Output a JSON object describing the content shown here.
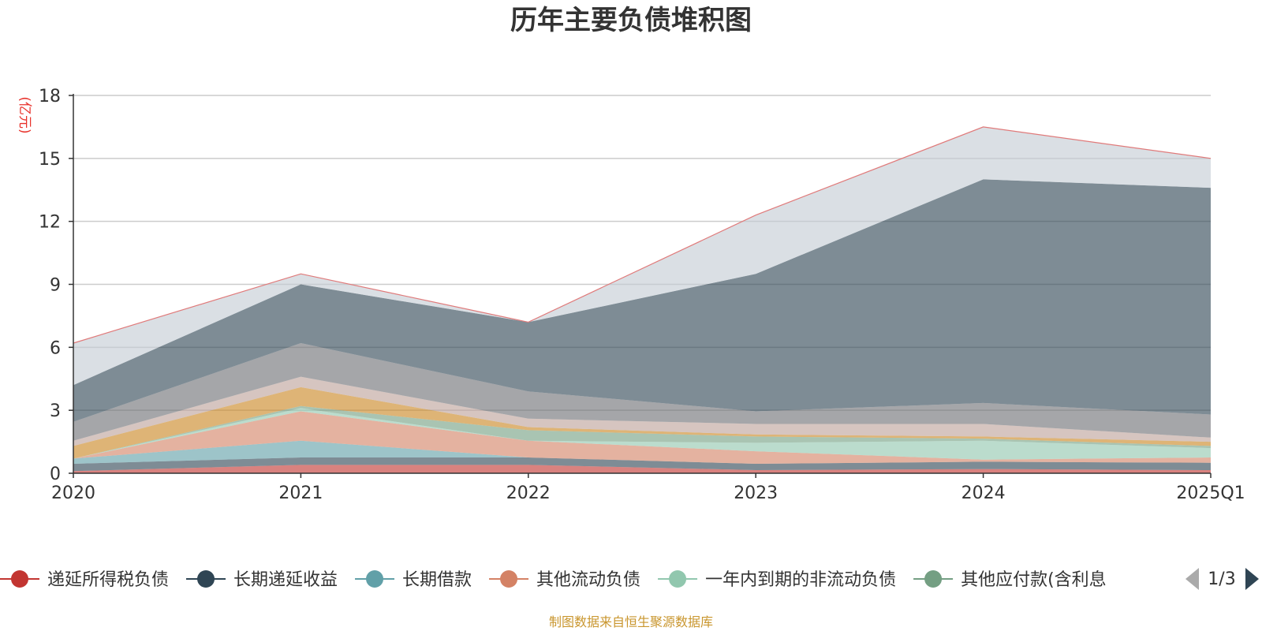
{
  "chart_data": {
    "type": "area",
    "title": "历年主要负债堆积图",
    "unit_label": "(亿元)",
    "x": [
      "2020",
      "2021",
      "2022",
      "2023",
      "2024",
      "2025Q1"
    ],
    "ylim": [
      0,
      18
    ],
    "yticks": [
      "0",
      "3",
      "6",
      "9",
      "12",
      "15",
      "18"
    ],
    "grid": true,
    "stacked": true,
    "series": [
      {
        "name": "递延所得税负债",
        "color": "#c23531",
        "values": [
          0.1,
          0.4,
          0.4,
          0.15,
          0.2,
          0.15
        ]
      },
      {
        "name": "长期递延收益",
        "color": "#2f4554",
        "values": [
          0.35,
          0.35,
          0.35,
          0.3,
          0.35,
          0.35
        ]
      },
      {
        "name": "长期借款",
        "color": "#61a0a8",
        "values": [
          0.25,
          0.8,
          0.0,
          0.0,
          0.0,
          0.0
        ]
      },
      {
        "name": "其他流动负债",
        "color": "#d48265",
        "values": [
          0.0,
          1.4,
          0.8,
          0.6,
          0.1,
          0.25
        ]
      },
      {
        "name": "一年内到期的非流动负债",
        "color": "#91c7ae",
        "values": [
          0.0,
          0.15,
          0.0,
          0.4,
          0.9,
          0.45
        ]
      },
      {
        "name": "其他应付款(含利息",
        "color": "#749f83",
        "values": [
          0.0,
          0.1,
          0.5,
          0.3,
          0.1,
          0.1
        ]
      },
      {
        "name": "",
        "color": "#ca8622",
        "values": [
          0.6,
          0.9,
          0.15,
          0.1,
          0.1,
          0.2
        ]
      },
      {
        "name": "",
        "color": "#bda29a",
        "values": [
          0.25,
          0.5,
          0.4,
          0.5,
          0.6,
          0.2
        ]
      },
      {
        "name": "",
        "color": "#6e7074",
        "values": [
          0.9,
          1.6,
          1.3,
          0.6,
          1.0,
          1.1
        ]
      },
      {
        "name": "",
        "color": "#2f4554",
        "values": [
          1.75,
          2.8,
          3.3,
          6.55,
          10.65,
          10.8
        ]
      },
      {
        "name": "",
        "color": "#c4ccd3",
        "values": [
          2.0,
          0.5,
          0.0,
          2.8,
          2.5,
          1.4
        ]
      }
    ]
  },
  "legend": {
    "items": [
      {
        "label": "递延所得税负债",
        "color": "#c23531"
      },
      {
        "label": "长期递延收益",
        "color": "#2f4554"
      },
      {
        "label": "长期借款",
        "color": "#61a0a8"
      },
      {
        "label": "其他流动负债",
        "color": "#d48265"
      },
      {
        "label": "一年内到期的非流动负债",
        "color": "#91c7ae"
      },
      {
        "label": "其他应付款(含利息",
        "color": "#749f83"
      }
    ],
    "page": "1/3",
    "prev_icon": "triangle-left-icon",
    "next_icon": "triangle-right-icon"
  },
  "source": "制图数据来自恒生聚源数据库"
}
